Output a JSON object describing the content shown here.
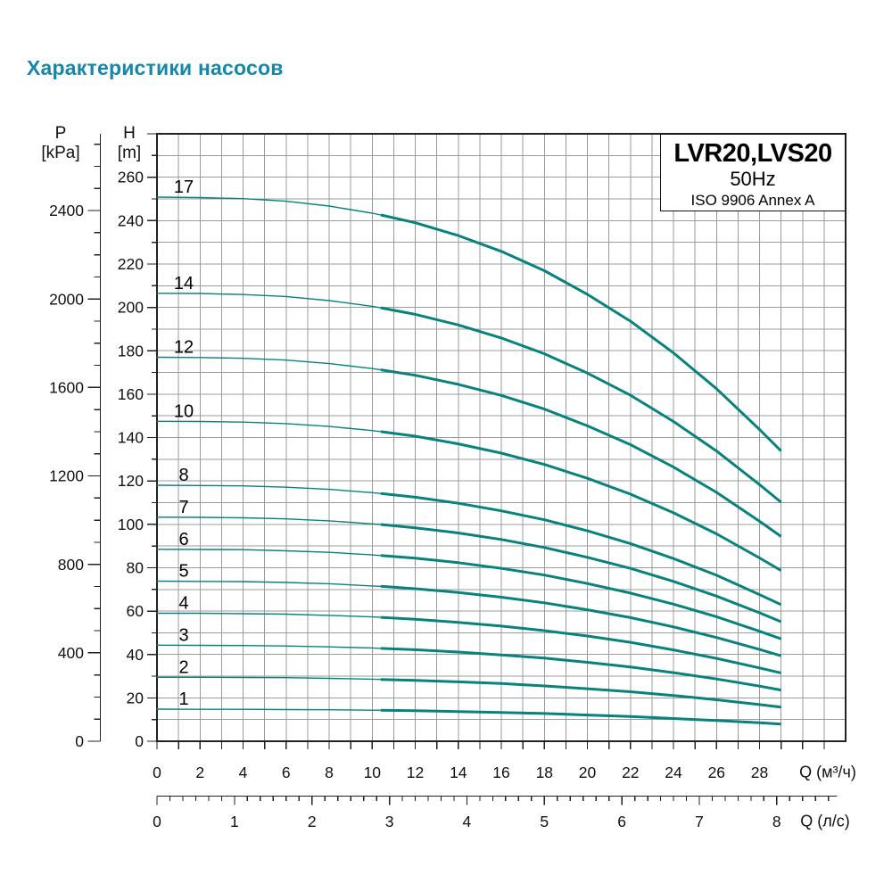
{
  "page": {
    "title": "Характеристики насосов"
  },
  "colors": {
    "title": "#1687aa",
    "curve": "#08827d",
    "grid": "#9b9b9b",
    "axis": "#222222",
    "text": "#111111",
    "legend_border": "#111111",
    "background": "#ffffff"
  },
  "legend": {
    "model": "LVR20,LVS20",
    "frequency": "50Hz",
    "standard": "ISO 9906 Annex A"
  },
  "axes": {
    "pressure": {
      "name": "P",
      "unit": "[kPa]",
      "tick_labels": [
        2400,
        2000,
        1600,
        1200,
        800,
        400,
        0
      ],
      "minor_step_kpa": 100,
      "major_step_kpa": 400,
      "max_tick_kpa": 2700
    },
    "head": {
      "name": "H",
      "unit": "[m]",
      "tick_labels": [
        260,
        240,
        220,
        200,
        180,
        160,
        140,
        120,
        100,
        80,
        60,
        40,
        20,
        0
      ],
      "minor_step_m": 10,
      "major_step_m": 20,
      "axis_top_m": 280
    },
    "flow_m3h": {
      "unit_label": "Q (м³/ч)",
      "tick_labels": [
        0,
        2,
        4,
        6,
        8,
        10,
        12,
        14,
        16,
        18,
        20,
        22,
        24,
        26,
        28
      ],
      "minor_step": 1,
      "max_tick": 31,
      "axis_max": 32
    },
    "flow_ls": {
      "unit_label": "Q (л/с)",
      "tick_labels": [
        0,
        1,
        2,
        3,
        4,
        5,
        6,
        7,
        8
      ],
      "minor_ticks_per_unit": 6,
      "m3h_per_unit": 3.6,
      "axis_end_ls": 8.78
    }
  },
  "chart_data": {
    "type": "line",
    "title": "LVR20,LVS20 50Hz ISO 9906 Annex A",
    "xlabel": "Q (м³/ч)",
    "ylabel": "H [m]",
    "xlim": [
      0,
      32
    ],
    "ylim": [
      0,
      280
    ],
    "grid": "on",
    "legend_position": "top-right",
    "x": [
      0,
      2,
      4,
      6,
      8,
      10,
      10.4,
      12,
      14,
      16,
      18,
      20,
      22,
      24,
      26,
      28,
      29
    ],
    "thick_segment_from_x": 10.4,
    "curve_end_x": 29,
    "series": [
      {
        "name": "17",
        "stages": 17,
        "values": [
          250.8,
          250.6,
          250.1,
          248.9,
          246.7,
          243.4,
          242.6,
          239.0,
          233.1,
          225.8,
          216.9,
          206.0,
          193.6,
          179.0,
          162.5,
          143.7,
          133.8
        ]
      },
      {
        "name": "14",
        "stages": 14,
        "values": [
          206.5,
          206.4,
          205.9,
          205.0,
          203.1,
          200.5,
          199.8,
          196.8,
          191.9,
          185.9,
          178.6,
          169.7,
          159.5,
          147.4,
          133.8,
          118.3,
          110.2
        ]
      },
      {
        "name": "12",
        "stages": 12,
        "values": [
          177.0,
          176.9,
          176.5,
          175.7,
          174.1,
          171.8,
          171.2,
          168.7,
          164.5,
          159.4,
          153.1,
          145.4,
          136.7,
          126.4,
          114.7,
          101.4,
          94.4
        ]
      },
      {
        "name": "10",
        "stages": 10,
        "values": [
          147.5,
          147.4,
          147.1,
          146.4,
          145.1,
          143.2,
          142.7,
          140.6,
          137.1,
          132.8,
          127.6,
          121.2,
          113.9,
          105.3,
          95.6,
          84.5,
          78.7
        ]
      },
      {
        "name": "8",
        "stages": 8,
        "values": [
          118.0,
          117.9,
          117.7,
          117.1,
          116.1,
          114.6,
          114.2,
          112.5,
          109.7,
          106.2,
          102.1,
          97.0,
          91.1,
          84.2,
          76.5,
          67.6,
          63.0
        ]
      },
      {
        "name": "7",
        "stages": 7,
        "values": [
          103.3,
          103.2,
          103.0,
          102.5,
          101.6,
          100.2,
          99.9,
          98.4,
          96.0,
          93.0,
          89.3,
          84.8,
          79.7,
          73.7,
          66.9,
          59.2,
          55.1
        ]
      },
      {
        "name": "6",
        "stages": 6,
        "values": [
          88.5,
          88.4,
          88.3,
          87.8,
          87.1,
          85.9,
          85.6,
          84.4,
          82.3,
          79.7,
          76.6,
          72.7,
          68.3,
          63.2,
          57.4,
          50.7,
          47.2
        ]
      },
      {
        "name": "5",
        "stages": 5,
        "values": [
          73.8,
          73.7,
          73.6,
          73.2,
          72.6,
          71.6,
          71.4,
          70.3,
          68.6,
          66.4,
          63.8,
          60.6,
          57.0,
          52.7,
          47.8,
          42.3,
          39.4
        ]
      },
      {
        "name": "4",
        "stages": 4,
        "values": [
          59.0,
          59.0,
          58.8,
          58.6,
          58.0,
          57.3,
          57.1,
          56.2,
          54.8,
          53.1,
          51.0,
          48.5,
          45.6,
          42.1,
          38.2,
          33.8,
          31.5
        ]
      },
      {
        "name": "3",
        "stages": 3,
        "values": [
          44.3,
          44.2,
          44.1,
          43.9,
          43.5,
          43.0,
          42.8,
          42.2,
          41.1,
          39.8,
          38.3,
          36.4,
          34.2,
          31.6,
          28.7,
          25.4,
          23.6
        ]
      },
      {
        "name": "2",
        "stages": 2,
        "values": [
          29.5,
          29.5,
          29.4,
          29.3,
          29.0,
          28.6,
          28.5,
          28.1,
          27.4,
          26.6,
          25.5,
          24.2,
          22.8,
          21.1,
          19.1,
          16.9,
          15.7
        ]
      },
      {
        "name": "1",
        "stages": 1,
        "values": [
          14.8,
          14.7,
          14.7,
          14.6,
          14.5,
          14.3,
          14.3,
          14.1,
          13.7,
          13.3,
          12.8,
          12.1,
          11.4,
          10.5,
          9.6,
          8.5,
          7.9
        ]
      }
    ]
  }
}
